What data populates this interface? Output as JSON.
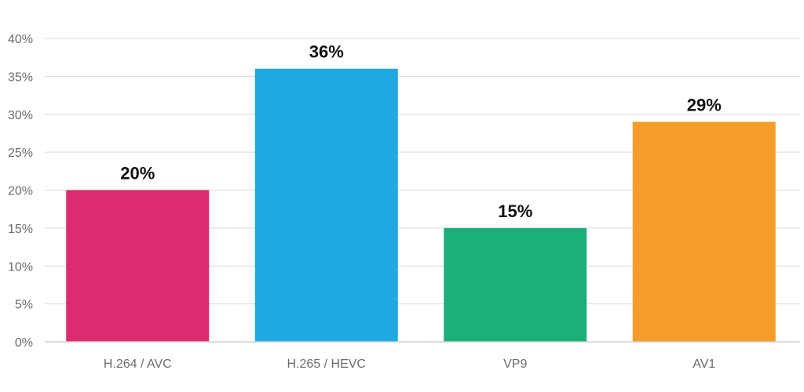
{
  "chart_data": {
    "type": "bar",
    "categories": [
      "H.264 / AVC",
      "H.265 / HEVC",
      "VP9",
      "AV1"
    ],
    "values": [
      20,
      36,
      15,
      29
    ],
    "value_labels": [
      "20%",
      "36%",
      "15%",
      "29%"
    ],
    "colors": [
      "#db2c6f",
      "#1ea9e1",
      "#1daf7a",
      "#f59d2b"
    ],
    "ylim": [
      0,
      40
    ],
    "yticks": [
      0,
      5,
      10,
      15,
      20,
      25,
      30,
      35,
      40
    ],
    "ytick_labels": [
      "0%",
      "5%",
      "10%",
      "15%",
      "20%",
      "25%",
      "30%",
      "35%",
      "40%"
    ],
    "grid": true,
    "title": "",
    "xlabel": "",
    "ylabel": ""
  }
}
